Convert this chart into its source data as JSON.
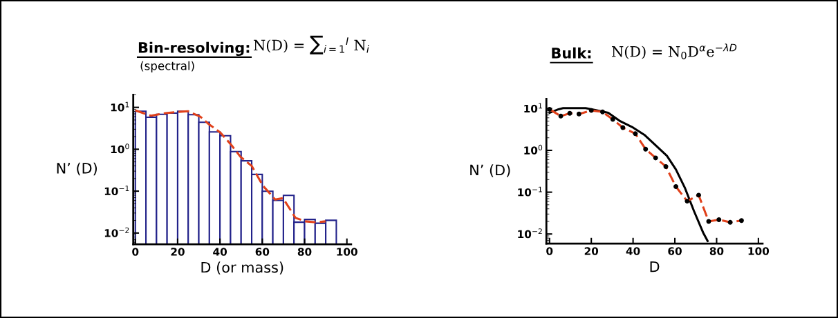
{
  "chart_data": [
    {
      "type": "histogram",
      "title": "Bin-resolving:",
      "subtitle": "(spectral)",
      "annotations": [
        "N(D) = ∑$_{i=1}$$^{I}$ N$_{i}$"
      ],
      "xlabel": "D (or mass)",
      "ylabel": "N’ (D)",
      "log": "y",
      "xlim": [
        -1,
        102
      ],
      "ylim": [
        0.0054,
        20
      ],
      "xticks": [
        0,
        20,
        40,
        60,
        80,
        100
      ],
      "yticks": [
        {
          "value": 10,
          "label": "10$^{1}$"
        },
        {
          "value": 1,
          "label": "10$^{0}$"
        },
        {
          "value": 0.1,
          "label": "10$^{−1}$"
        },
        {
          "value": 0.01,
          "label": "10$^{−2}$"
        }
      ],
      "bins": [
        0,
        5,
        10,
        15,
        20,
        25,
        30,
        35,
        40,
        45,
        50,
        55,
        60,
        65,
        70,
        75,
        80,
        85,
        90,
        95
      ],
      "series": [
        {
          "type": "histogram",
          "color": "#22228a",
          "values": [
            8.1,
            5.8,
            6.8,
            7.3,
            8.1,
            6.7,
            4.4,
            2.6,
            2.1,
            0.88,
            0.53,
            0.25,
            0.099,
            0.06,
            0.079,
            0.018,
            0.021,
            0.017,
            0.02
          ]
        },
        {
          "type": "line",
          "color": "#e0401a",
          "line_style": "dashed",
          "x": [
            0,
            7.4,
            14.3,
            20.1,
            24.9,
            30.7,
            34.4,
            40.2,
            45.5,
            49.7,
            55,
            60.3,
            66.1,
            69.8,
            75.7,
            80.4,
            85.7,
            89.9
          ],
          "values": [
            8.5,
            6.3,
            7.3,
            7.8,
            8.1,
            6.0,
            4.1,
            2.5,
            1.24,
            0.66,
            0.4,
            0.135,
            0.063,
            0.068,
            0.023,
            0.019,
            0.018,
            0.019
          ]
        }
      ]
    },
    {
      "type": "line",
      "title": "Bulk:",
      "annotations": [
        "N(D) = N$_{0}$D$^{α}$e$^{−λD}$"
      ],
      "xlabel": "D",
      "ylabel": "N’ (D)",
      "log": "y",
      "xlim": [
        -1.5,
        102
      ],
      "ylim": [
        0.0059,
        17
      ],
      "xticks": [
        0,
        20,
        40,
        60,
        80,
        100
      ],
      "yticks": [
        {
          "value": 10,
          "label": "10$^{1}$"
        },
        {
          "value": 1,
          "label": "10$^{0}$"
        },
        {
          "value": 0.1,
          "label": "10$^{−1}$"
        },
        {
          "value": 0.01,
          "label": "10$^{−2}$"
        }
      ],
      "series": [
        {
          "color": "#000000",
          "line_style": "solid",
          "x": [
            0,
            4.3,
            6.5,
            17.3,
            22.7,
            28.1,
            33.5,
            40,
            45.4,
            50.8,
            56.2,
            60.5,
            64.9,
            69.2,
            73.5,
            75.7
          ],
          "values": [
            7.9,
            9.6,
            10.2,
            10.2,
            9.0,
            7.9,
            5.1,
            3.5,
            2.35,
            1.32,
            0.74,
            0.35,
            0.124,
            0.035,
            0.0109,
            0.0068
          ]
        },
        {
          "color": "#e0401a",
          "line_style": "dashed",
          "marker": "circle",
          "x": [
            0,
            5.4,
            9.7,
            14.1,
            20,
            25.4,
            30.3,
            35.1,
            41.1,
            46,
            50.8,
            55.7,
            60.5,
            65.9,
            71.4,
            76.2,
            81.1,
            86.5,
            91.9
          ],
          "values": [
            9.6,
            6.6,
            7.7,
            7.4,
            9.0,
            8.3,
            5.5,
            3.5,
            2.5,
            1.07,
            0.66,
            0.41,
            0.136,
            0.061,
            0.085,
            0.02,
            0.022,
            0.019,
            0.021
          ]
        }
      ]
    }
  ]
}
